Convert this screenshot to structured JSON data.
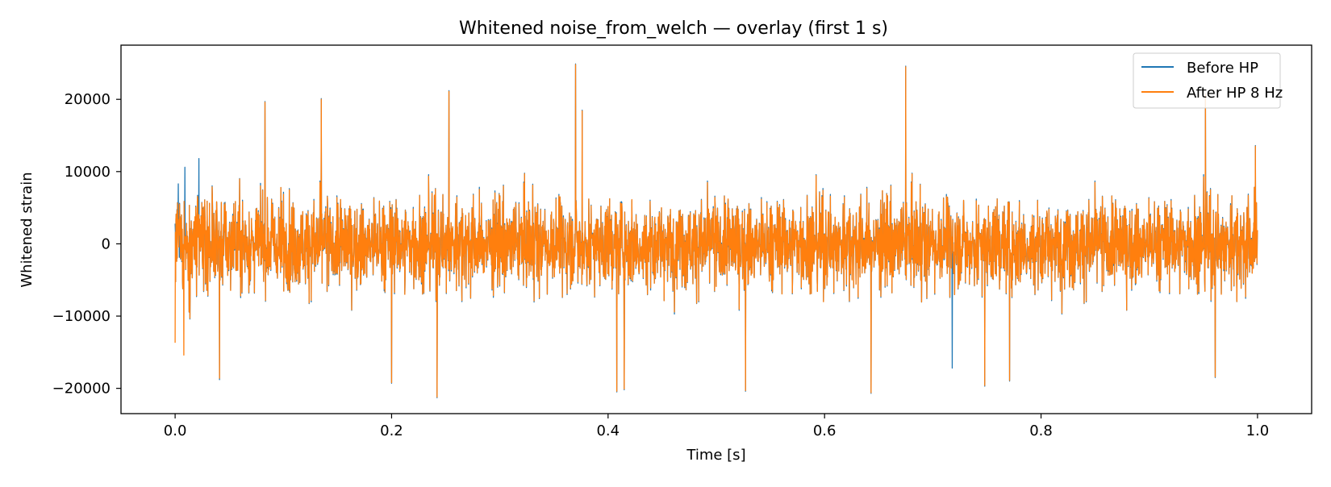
{
  "chart_data": {
    "type": "line",
    "title": "Whitened noise_from_welch — overlay (first 1 s)",
    "xlabel": "Time [s]",
    "ylabel": "Whitened strain",
    "xlim": [
      -0.05,
      1.05
    ],
    "ylim": [
      -23500,
      27500
    ],
    "xticks": [
      0.0,
      0.2,
      0.4,
      0.6,
      0.8,
      1.0
    ],
    "xtick_labels": [
      "0.0",
      "0.2",
      "0.4",
      "0.6",
      "0.8",
      "1.0"
    ],
    "yticks": [
      -20000,
      -10000,
      0,
      10000,
      20000
    ],
    "ytick_labels": [
      "−20000",
      "−10000",
      "0",
      "10000",
      "20000"
    ],
    "legend_position": "top-right",
    "grid": false,
    "sample_rate_hz": 4096,
    "series": [
      {
        "name": "Before HP",
        "color": "#1f77b4",
        "peaks": [
          {
            "t": 0.0,
            "v": 2800
          },
          {
            "t": 0.003,
            "v": 8300
          },
          {
            "t": 0.009,
            "v": 10600
          },
          {
            "t": 0.022,
            "v": 11800
          },
          {
            "t": 0.041,
            "v": -18800
          },
          {
            "t": 0.083,
            "v": 19700
          },
          {
            "t": 0.135,
            "v": 20100
          },
          {
            "t": 0.2,
            "v": -19300
          },
          {
            "t": 0.242,
            "v": -21300
          },
          {
            "t": 0.253,
            "v": 21200
          },
          {
            "t": 0.37,
            "v": 24900
          },
          {
            "t": 0.376,
            "v": 18500
          },
          {
            "t": 0.408,
            "v": -20500
          },
          {
            "t": 0.415,
            "v": -20200
          },
          {
            "t": 0.527,
            "v": -20400
          },
          {
            "t": 0.643,
            "v": -20700
          },
          {
            "t": 0.675,
            "v": 24600
          },
          {
            "t": 0.718,
            "v": -17200
          },
          {
            "t": 0.748,
            "v": -19700
          },
          {
            "t": 0.771,
            "v": -19000
          },
          {
            "t": 0.952,
            "v": 20800
          },
          {
            "t": 0.961,
            "v": -18500
          },
          {
            "t": 0.998,
            "v": 13600
          }
        ]
      },
      {
        "name": "After HP 8 Hz",
        "color": "#ff7f0e",
        "peaks": [
          {
            "t": 0.0,
            "v": -13700
          },
          {
            "t": 0.004,
            "v": 5500
          },
          {
            "t": 0.008,
            "v": -15400
          },
          {
            "t": 0.041,
            "v": -18600
          },
          {
            "t": 0.083,
            "v": 19600
          },
          {
            "t": 0.135,
            "v": 20000
          },
          {
            "t": 0.2,
            "v": -19200
          },
          {
            "t": 0.242,
            "v": -21200
          },
          {
            "t": 0.253,
            "v": 21100
          },
          {
            "t": 0.37,
            "v": 24800
          },
          {
            "t": 0.376,
            "v": 18400
          },
          {
            "t": 0.408,
            "v": -20400
          },
          {
            "t": 0.415,
            "v": -20100
          },
          {
            "t": 0.527,
            "v": -20300
          },
          {
            "t": 0.643,
            "v": -20600
          },
          {
            "t": 0.675,
            "v": 24500
          },
          {
            "t": 0.748,
            "v": -19600
          },
          {
            "t": 0.771,
            "v": -18900
          },
          {
            "t": 0.952,
            "v": 20700
          },
          {
            "t": 0.961,
            "v": -18400
          },
          {
            "t": 0.998,
            "v": 13500
          }
        ]
      }
    ]
  }
}
